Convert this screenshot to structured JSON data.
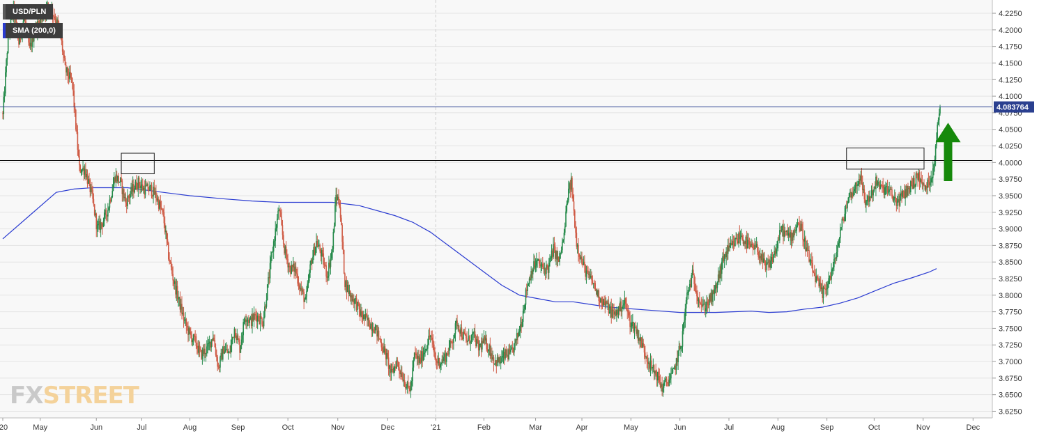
{
  "chart_data": {
    "type": "candlestick",
    "symbol": "USD/PLN",
    "indicator": "SMA (200,0)",
    "last_price": "4.083764",
    "y_ticks": [
      "4.2250",
      "4.2000",
      "4.1750",
      "4.1500",
      "4.1250",
      "4.1000",
      "4.0750",
      "4.0500",
      "4.0250",
      "4.0000",
      "3.9750",
      "3.9500",
      "3.9250",
      "3.9000",
      "3.8750",
      "3.8500",
      "3.8250",
      "3.8000",
      "3.7750",
      "3.7500",
      "3.7250",
      "3.7000",
      "3.6750",
      "3.6500",
      "3.6250"
    ],
    "ylim": [
      3.615,
      4.245
    ],
    "x_ticks": [
      {
        "label": "'20",
        "t": 0
      },
      {
        "label": "May",
        "t": 42
      },
      {
        "label": "Jun",
        "t": 105
      },
      {
        "label": "Jul",
        "t": 156
      },
      {
        "label": "Aug",
        "t": 210
      },
      {
        "label": "Sep",
        "t": 264
      },
      {
        "label": "Oct",
        "t": 320
      },
      {
        "label": "Nov",
        "t": 376
      },
      {
        "label": "Dec",
        "t": 432
      },
      {
        "label": "'21",
        "t": 486
      },
      {
        "label": "Feb",
        "t": 540
      },
      {
        "label": "Mar",
        "t": 598
      },
      {
        "label": "Apr",
        "t": 650
      },
      {
        "label": "May",
        "t": 705
      },
      {
        "label": "Jun",
        "t": 760
      },
      {
        "label": "Jul",
        "t": 815
      },
      {
        "label": "Aug",
        "t": 870
      },
      {
        "label": "Sep",
        "t": 925
      },
      {
        "label": "Oct",
        "t": 978
      },
      {
        "label": "Nov",
        "t": 1033
      },
      {
        "label": "Dec",
        "t": 1089
      }
    ],
    "anchors": [
      [
        0,
        4.07
      ],
      [
        6,
        4.19
      ],
      [
        12,
        4.23
      ],
      [
        18,
        4.18
      ],
      [
        24,
        4.22
      ],
      [
        30,
        4.17
      ],
      [
        36,
        4.2
      ],
      [
        44,
        4.22
      ],
      [
        52,
        4.24
      ],
      [
        58,
        4.22
      ],
      [
        64,
        4.2
      ],
      [
        70,
        4.14
      ],
      [
        78,
        4.12
      ],
      [
        86,
        3.99
      ],
      [
        92,
        3.99
      ],
      [
        100,
        3.95
      ],
      [
        106,
        3.9
      ],
      [
        112,
        3.91
      ],
      [
        118,
        3.93
      ],
      [
        126,
        3.98
      ],
      [
        132,
        3.97
      ],
      [
        138,
        3.94
      ],
      [
        146,
        3.96
      ],
      [
        152,
        3.97
      ],
      [
        158,
        3.96
      ],
      [
        166,
        3.96
      ],
      [
        172,
        3.95
      ],
      [
        180,
        3.92
      ],
      [
        186,
        3.86
      ],
      [
        192,
        3.82
      ],
      [
        198,
        3.79
      ],
      [
        204,
        3.76
      ],
      [
        210,
        3.74
      ],
      [
        216,
        3.73
      ],
      [
        222,
        3.71
      ],
      [
        230,
        3.72
      ],
      [
        236,
        3.74
      ],
      [
        242,
        3.69
      ],
      [
        248,
        3.72
      ],
      [
        254,
        3.71
      ],
      [
        260,
        3.75
      ],
      [
        266,
        3.72
      ],
      [
        272,
        3.77
      ],
      [
        278,
        3.76
      ],
      [
        284,
        3.77
      ],
      [
        292,
        3.76
      ],
      [
        298,
        3.82
      ],
      [
        304,
        3.88
      ],
      [
        310,
        3.93
      ],
      [
        316,
        3.87
      ],
      [
        322,
        3.84
      ],
      [
        328,
        3.84
      ],
      [
        334,
        3.81
      ],
      [
        340,
        3.79
      ],
      [
        346,
        3.85
      ],
      [
        352,
        3.88
      ],
      [
        358,
        3.86
      ],
      [
        364,
        3.83
      ],
      [
        370,
        3.87
      ],
      [
        374,
        3.95
      ],
      [
        378,
        3.94
      ],
      [
        384,
        3.82
      ],
      [
        390,
        3.8
      ],
      [
        396,
        3.79
      ],
      [
        402,
        3.77
      ],
      [
        410,
        3.76
      ],
      [
        418,
        3.75
      ],
      [
        424,
        3.73
      ],
      [
        430,
        3.71
      ],
      [
        436,
        3.68
      ],
      [
        442,
        3.7
      ],
      [
        448,
        3.68
      ],
      [
        454,
        3.66
      ],
      [
        458,
        3.66
      ],
      [
        462,
        3.71
      ],
      [
        468,
        3.7
      ],
      [
        474,
        3.72
      ],
      [
        480,
        3.74
      ],
      [
        486,
        3.7
      ],
      [
        492,
        3.7
      ],
      [
        498,
        3.71
      ],
      [
        504,
        3.73
      ],
      [
        510,
        3.76
      ],
      [
        516,
        3.74
      ],
      [
        522,
        3.73
      ],
      [
        528,
        3.74
      ],
      [
        534,
        3.72
      ],
      [
        540,
        3.73
      ],
      [
        546,
        3.72
      ],
      [
        552,
        3.7
      ],
      [
        558,
        3.7
      ],
      [
        564,
        3.71
      ],
      [
        570,
        3.71
      ],
      [
        576,
        3.73
      ],
      [
        582,
        3.76
      ],
      [
        588,
        3.81
      ],
      [
        594,
        3.84
      ],
      [
        600,
        3.85
      ],
      [
        606,
        3.84
      ],
      [
        612,
        3.84
      ],
      [
        618,
        3.87
      ],
      [
        624,
        3.85
      ],
      [
        630,
        3.89
      ],
      [
        634,
        3.95
      ],
      [
        638,
        3.97
      ],
      [
        644,
        3.88
      ],
      [
        650,
        3.85
      ],
      [
        656,
        3.83
      ],
      [
        662,
        3.82
      ],
      [
        668,
        3.8
      ],
      [
        674,
        3.79
      ],
      [
        680,
        3.78
      ],
      [
        686,
        3.77
      ],
      [
        692,
        3.78
      ],
      [
        698,
        3.79
      ],
      [
        704,
        3.76
      ],
      [
        710,
        3.75
      ],
      [
        716,
        3.73
      ],
      [
        722,
        3.71
      ],
      [
        728,
        3.69
      ],
      [
        734,
        3.68
      ],
      [
        740,
        3.66
      ],
      [
        746,
        3.67
      ],
      [
        752,
        3.68
      ],
      [
        756,
        3.7
      ],
      [
        762,
        3.73
      ],
      [
        768,
        3.8
      ],
      [
        774,
        3.83
      ],
      [
        780,
        3.8
      ],
      [
        786,
        3.78
      ],
      [
        792,
        3.79
      ],
      [
        798,
        3.8
      ],
      [
        804,
        3.83
      ],
      [
        810,
        3.86
      ],
      [
        816,
        3.87
      ],
      [
        822,
        3.88
      ],
      [
        828,
        3.89
      ],
      [
        834,
        3.88
      ],
      [
        840,
        3.87
      ],
      [
        846,
        3.87
      ],
      [
        850,
        3.86
      ],
      [
        856,
        3.84
      ],
      [
        862,
        3.85
      ],
      [
        868,
        3.87
      ],
      [
        874,
        3.9
      ],
      [
        880,
        3.89
      ],
      [
        886,
        3.89
      ],
      [
        892,
        3.91
      ],
      [
        896,
        3.9
      ],
      [
        902,
        3.87
      ],
      [
        908,
        3.84
      ],
      [
        914,
        3.82
      ],
      [
        920,
        3.8
      ],
      [
        926,
        3.82
      ],
      [
        932,
        3.84
      ],
      [
        938,
        3.88
      ],
      [
        944,
        3.92
      ],
      [
        950,
        3.95
      ],
      [
        956,
        3.96
      ],
      [
        962,
        3.98
      ],
      [
        968,
        3.94
      ],
      [
        974,
        3.95
      ],
      [
        980,
        3.97
      ],
      [
        986,
        3.96
      ],
      [
        992,
        3.96
      ],
      [
        998,
        3.95
      ],
      [
        1004,
        3.94
      ],
      [
        1010,
        3.95
      ],
      [
        1016,
        3.96
      ],
      [
        1022,
        3.97
      ],
      [
        1028,
        3.98
      ],
      [
        1034,
        3.96
      ],
      [
        1040,
        3.97
      ],
      [
        1044,
        3.99
      ],
      [
        1046,
        4.01
      ],
      [
        1048,
        4.04
      ],
      [
        1050,
        4.06
      ],
      [
        1052,
        4.084
      ]
    ],
    "sma_200": [
      [
        0,
        3.885
      ],
      [
        30,
        3.92
      ],
      [
        60,
        3.955
      ],
      [
        80,
        3.96
      ],
      [
        100,
        3.962
      ],
      [
        140,
        3.962
      ],
      [
        180,
        3.955
      ],
      [
        210,
        3.95
      ],
      [
        250,
        3.945
      ],
      [
        280,
        3.942
      ],
      [
        310,
        3.94
      ],
      [
        340,
        3.94
      ],
      [
        370,
        3.94
      ],
      [
        400,
        3.935
      ],
      [
        440,
        3.92
      ],
      [
        460,
        3.91
      ],
      [
        480,
        3.895
      ],
      [
        500,
        3.875
      ],
      [
        520,
        3.855
      ],
      [
        540,
        3.835
      ],
      [
        560,
        3.815
      ],
      [
        580,
        3.8
      ],
      [
        600,
        3.795
      ],
      [
        620,
        3.79
      ],
      [
        640,
        3.79
      ],
      [
        660,
        3.786
      ],
      [
        680,
        3.782
      ],
      [
        700,
        3.78
      ],
      [
        720,
        3.778
      ],
      [
        740,
        3.776
      ],
      [
        760,
        3.774
      ],
      [
        780,
        3.774
      ],
      [
        800,
        3.774
      ],
      [
        820,
        3.775
      ],
      [
        840,
        3.776
      ],
      [
        860,
        3.774
      ],
      [
        880,
        3.775
      ],
      [
        900,
        3.779
      ],
      [
        920,
        3.782
      ],
      [
        940,
        3.788
      ],
      [
        960,
        3.796
      ],
      [
        980,
        3.807
      ],
      [
        1000,
        3.818
      ],
      [
        1020,
        3.826
      ],
      [
        1040,
        3.835
      ],
      [
        1048,
        3.84
      ]
    ],
    "horizontal_lines": [
      {
        "value": 4.003,
        "color": "#000000"
      },
      {
        "value": 4.083764,
        "color": "#2a3f8f"
      }
    ],
    "range_boxes": [
      {
        "t0": 133,
        "t1": 170,
        "y_low": 3.983,
        "y_high": 4.014
      },
      {
        "t0": 947,
        "t1": 1034,
        "y_low": 3.99,
        "y_high": 4.022
      }
    ],
    "arrow": {
      "direction": "up",
      "t": 1061,
      "y_low": 3.972,
      "y_high": 4.06,
      "color": "#16890b"
    },
    "colors": {
      "up": "#258a4a",
      "down": "#cf5b45",
      "sma": "#2a3bd1",
      "grid": "#e3e3e3",
      "background": "#f8f8f8"
    },
    "grid": true,
    "watermark": {
      "fx": "FX",
      "street": "STREET"
    }
  }
}
